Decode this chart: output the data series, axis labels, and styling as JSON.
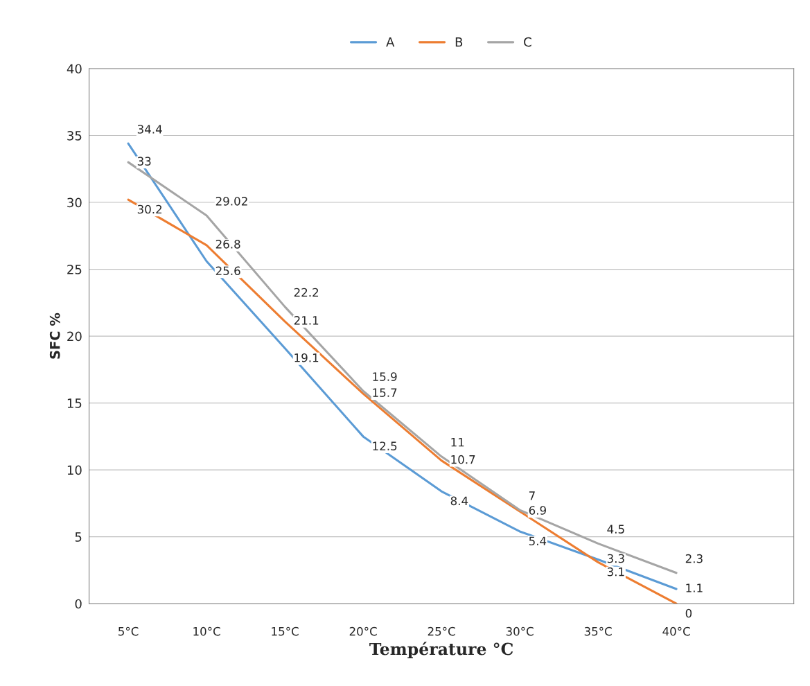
{
  "chart_data": {
    "type": "line",
    "xlabel": "Température °C",
    "ylabel": "SFC %",
    "categories": [
      "5°C",
      "10°C",
      "15°C",
      "20°C",
      "25°C",
      "30°C",
      "35°C",
      "40°C"
    ],
    "series": [
      {
        "name": "A",
        "color": "#5b9bd5",
        "values": [
          34.4,
          25.6,
          19.1,
          12.5,
          8.4,
          5.4,
          3.3,
          1.1
        ]
      },
      {
        "name": "B",
        "color": "#ed7d31",
        "values": [
          30.2,
          26.8,
          21.1,
          15.7,
          10.7,
          6.9,
          3.1,
          0
        ]
      },
      {
        "name": "C",
        "color": "#a5a5a5",
        "values": [
          33,
          29.02,
          22.2,
          15.9,
          11,
          7,
          4.5,
          2.3
        ]
      }
    ],
    "ylim": [
      0,
      40
    ],
    "yticks": [
      0,
      5,
      10,
      15,
      20,
      25,
      30,
      35,
      40
    ],
    "grid": "y",
    "legend": "top",
    "data_labels": true,
    "marker": "none",
    "line_style": "solid"
  }
}
